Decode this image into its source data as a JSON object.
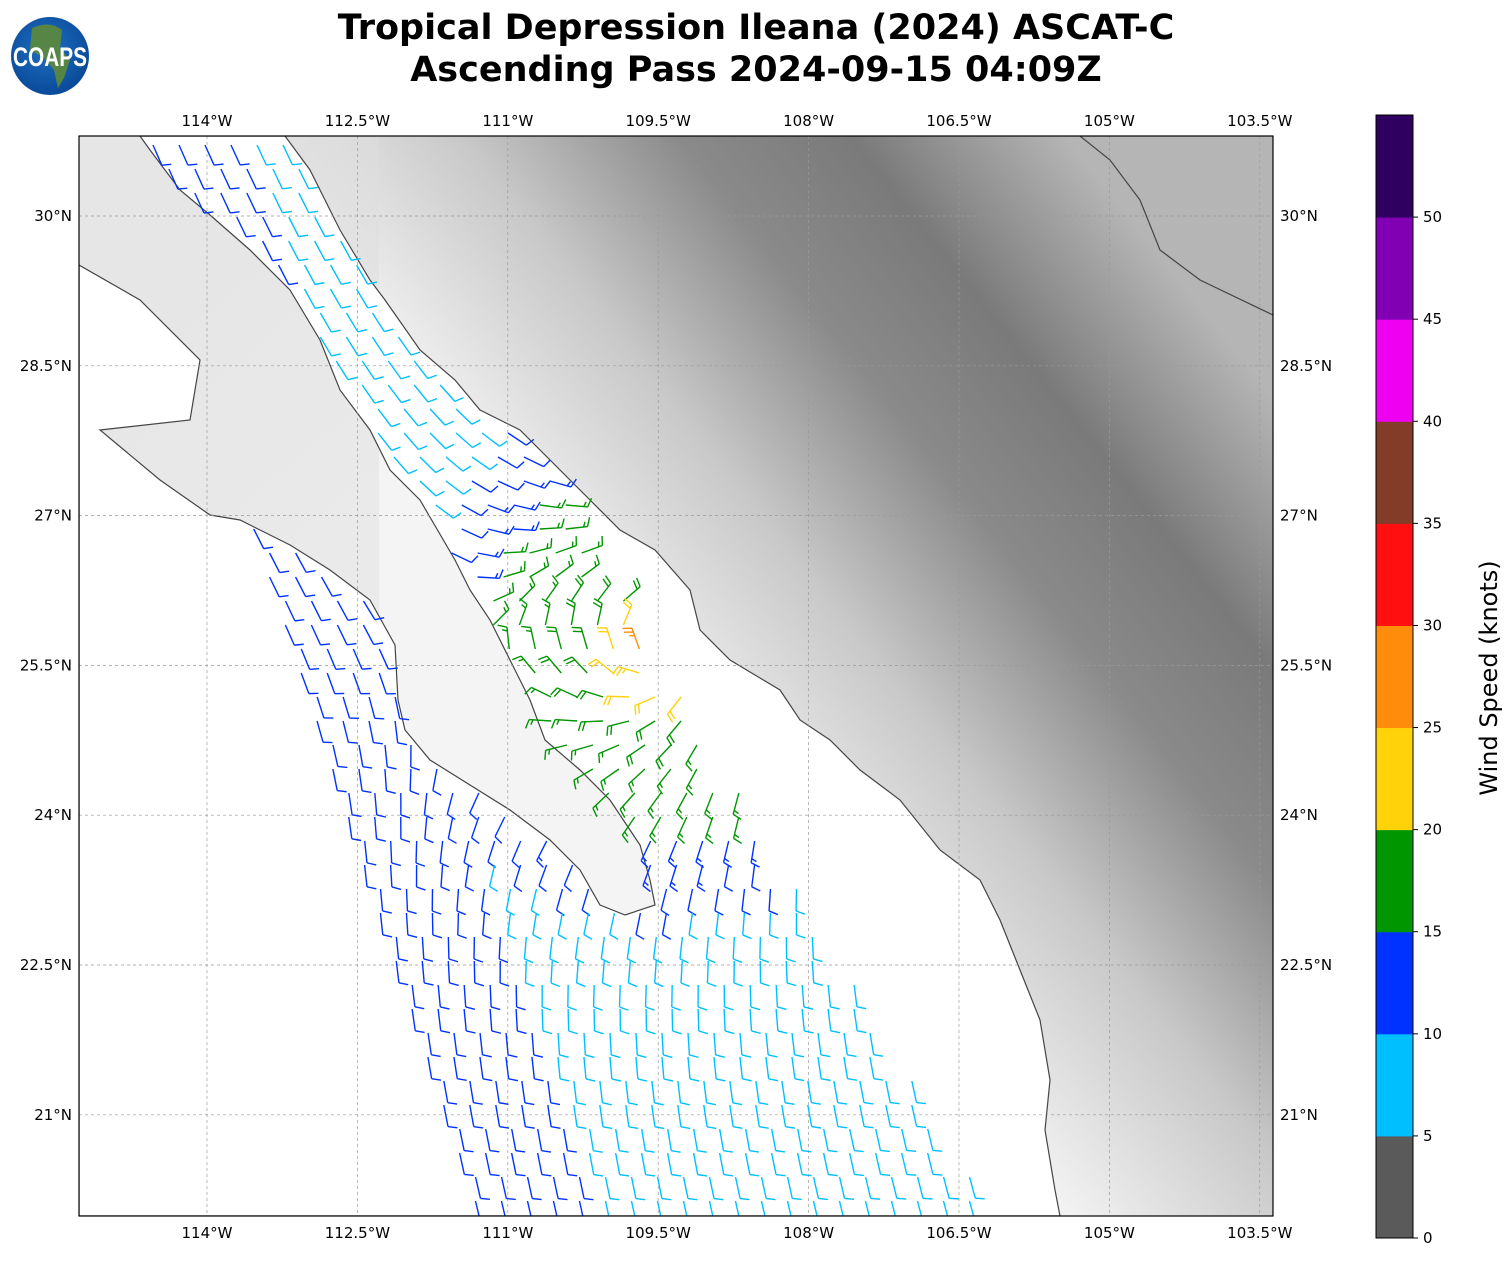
{
  "title": {
    "line1": "Tropical Depression Ileana (2024) ASCAT-C",
    "line2": "Ascending Pass 2024-09-15 04:09Z"
  },
  "logo": {
    "text": "COAPS"
  },
  "map": {
    "lon_ticks": [
      "114°W",
      "112.5°W",
      "111°W",
      "109.5°W",
      "108°W",
      "106.5°W",
      "105°W",
      "103.5°W"
    ],
    "lat_ticks": [
      "30°N",
      "28.5°N",
      "27°N",
      "25.5°N",
      "24°N",
      "22.5°N",
      "21°N"
    ],
    "gridlines": true,
    "background": "grayscale terrain elevation",
    "storm_center_approx": {
      "lon": "109.3°W",
      "lat": "25.7°N"
    }
  },
  "colorbar": {
    "label": "Wind Speed (knots)",
    "ticks": [
      "0",
      "5",
      "10",
      "15",
      "20",
      "25",
      "30",
      "35",
      "40",
      "45",
      "50"
    ],
    "colors": [
      "#5a5a5a",
      "#00bfff",
      "#0032ff",
      "#009600",
      "#ffd20a",
      "#ff8c0a",
      "#ff0f0f",
      "#823c28",
      "#f000f0",
      "#8200b4",
      "#300060"
    ]
  }
}
